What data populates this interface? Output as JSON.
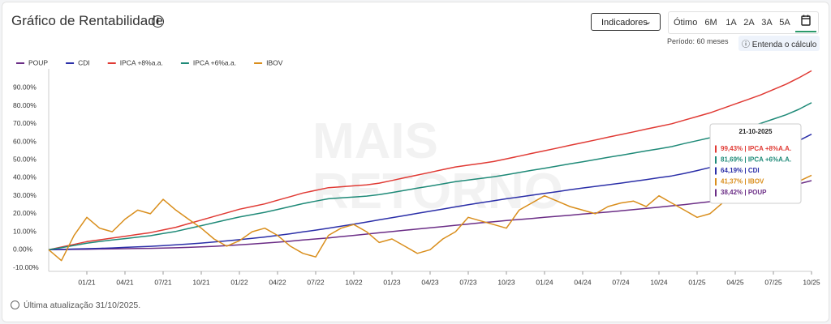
{
  "header": {
    "title": "Gráfico de Rentabilidade",
    "indicators_button": "Indicadores",
    "ranges": [
      "Ótimo",
      "6M",
      "1A",
      "2A",
      "3A",
      "5A"
    ],
    "period": "Período: 60 meses",
    "help_link": "Entenda o cálculo"
  },
  "footer": "Última atualização 31/10/2025.",
  "watermark": [
    "MAIS",
    "RETORNO"
  ],
  "tooltip": {
    "date": "21-10-2025",
    "items": [
      {
        "label": "99,43% | IPCA +8%A.A.",
        "color": "#e03a34"
      },
      {
        "label": "81,69% | IPCA +6%A.A.",
        "color": "#1f8a78"
      },
      {
        "label": "64,19% | CDI",
        "color": "#2b2fa8"
      },
      {
        "label": "41,37% | IBOV",
        "color": "#d98e1c"
      },
      {
        "label": "38,42% | POUP",
        "color": "#6b2d86"
      }
    ]
  },
  "chart_data": {
    "type": "line",
    "categories": [
      null,
      null,
      null,
      "01/21",
      null,
      null,
      "04/21",
      null,
      null,
      "07/21",
      null,
      null,
      "10/21",
      null,
      null,
      "01/22",
      null,
      null,
      "04/22",
      null,
      null,
      "07/22",
      null,
      null,
      "10/22",
      null,
      null,
      "01/23",
      null,
      null,
      "04/23",
      null,
      null,
      "07/23",
      null,
      null,
      "10/23",
      null,
      null,
      "01/24",
      null,
      null,
      "04/24",
      null,
      null,
      "07/24",
      null,
      null,
      "10/24",
      null,
      null,
      "01/25",
      null,
      null,
      "04/25",
      null,
      null,
      "07/25",
      null,
      null,
      "10/25"
    ],
    "ylim": [
      -12,
      96
    ],
    "yticks": [
      {
        "value": -10,
        "label": "-10.00%"
      },
      {
        "value": 0,
        "label": "0.00%"
      },
      {
        "value": 10,
        "label": "10.00%"
      },
      {
        "value": 20,
        "label": "20.00%"
      },
      {
        "value": 30,
        "label": "30.00%"
      },
      {
        "value": 40,
        "label": "40.00%"
      },
      {
        "value": 50,
        "label": "50.00%"
      },
      {
        "value": 60,
        "label": "60.00%"
      },
      {
        "value": 70,
        "label": "70.00%"
      },
      {
        "value": 80,
        "label": "80.00%"
      },
      {
        "value": 90,
        "label": "90.00%"
      }
    ],
    "grid": false,
    "series": [
      {
        "name": "POUP",
        "color": "#6b2d86",
        "values": [
          0,
          0.1,
          0.2,
          0.3,
          0.4,
          0.5,
          0.6,
          0.7,
          0.8,
          0.9,
          1.1,
          1.3,
          1.6,
          1.9,
          2.3,
          2.7,
          3.2,
          3.7,
          4.2,
          4.8,
          5.4,
          6.0,
          6.6,
          7.3,
          8.0,
          8.7,
          9.4,
          10.1,
          10.8,
          11.5,
          12.2,
          12.9,
          13.6,
          14.3,
          15.0,
          15.6,
          16.2,
          16.8,
          17.4,
          18.0,
          18.6,
          19.2,
          19.8,
          20.4,
          21.0,
          21.6,
          22.3,
          23.0,
          23.7,
          24.4,
          25.1,
          25.9,
          26.7,
          27.6,
          28.6,
          30.0,
          31.5,
          33.0,
          34.8,
          36.6,
          38.42
        ]
      },
      {
        "name": "CDI",
        "color": "#2b2fa8",
        "values": [
          0,
          0.2,
          0.4,
          0.6,
          0.8,
          1.0,
          1.3,
          1.6,
          1.9,
          2.3,
          2.7,
          3.2,
          3.7,
          4.3,
          4.9,
          5.6,
          6.3,
          7.1,
          8.0,
          8.9,
          9.9,
          10.9,
          12.0,
          13.1,
          14.2,
          15.4,
          16.6,
          17.8,
          19.0,
          20.2,
          21.4,
          22.6,
          23.8,
          25.0,
          26.1,
          27.2,
          28.3,
          29.3,
          30.3,
          31.3,
          32.3,
          33.3,
          34.3,
          35.2,
          36.1,
          37.0,
          38.0,
          39.0,
          40.0,
          41.0,
          42.4,
          44.0,
          45.7,
          47.5,
          49.4,
          51.4,
          53.5,
          55.7,
          58.0,
          60.6,
          64.19
        ]
      },
      {
        "name": "IPCA +8%a.a.",
        "color": "#e03a34",
        "values": [
          0,
          1.5,
          3.0,
          4.5,
          5.5,
          6.5,
          7.5,
          8.5,
          9.5,
          11.0,
          12.5,
          14.5,
          16.5,
          18.5,
          20.5,
          22.5,
          24.0,
          25.5,
          27.5,
          29.5,
          31.5,
          33.0,
          34.5,
          35.0,
          35.5,
          36.0,
          37.0,
          38.5,
          40.0,
          41.5,
          43.0,
          44.5,
          46.0,
          47.0,
          48.0,
          49.0,
          50.5,
          52.0,
          53.5,
          55.0,
          56.5,
          58.0,
          59.5,
          61.0,
          62.5,
          64.0,
          65.5,
          67.0,
          68.5,
          70.0,
          72.0,
          74.0,
          76.0,
          78.5,
          81.0,
          83.5,
          86.0,
          89.0,
          92.0,
          95.5,
          99.43
        ]
      },
      {
        "name": "IPCA +6%a.a.",
        "color": "#1f8a78",
        "values": [
          0,
          1.2,
          2.4,
          3.6,
          4.6,
          5.4,
          6.2,
          7.0,
          7.8,
          9.0,
          10.2,
          11.8,
          13.4,
          15.0,
          16.6,
          18.2,
          19.5,
          20.8,
          22.4,
          24.0,
          25.6,
          27.0,
          28.3,
          28.8,
          29.3,
          29.8,
          30.6,
          31.8,
          33.0,
          34.2,
          35.4,
          36.6,
          37.8,
          38.7,
          39.6,
          40.5,
          41.7,
          42.9,
          44.1,
          45.3,
          46.5,
          47.7,
          48.9,
          50.1,
          51.3,
          52.5,
          53.7,
          54.9,
          56.1,
          57.3,
          59.0,
          60.6,
          62.2,
          64.2,
          66.2,
          68.2,
          70.2,
          72.6,
          75.0,
          78.0,
          81.69
        ]
      },
      {
        "name": "IBOV",
        "color": "#d98e1c",
        "values": [
          0,
          -6,
          8,
          18,
          12,
          10,
          17,
          22,
          20,
          28,
          22,
          17,
          12,
          6,
          2,
          5,
          10,
          12,
          8,
          2,
          -2,
          -4,
          8,
          12,
          14,
          10,
          4,
          6,
          2,
          -2,
          0,
          6,
          10,
          18,
          16,
          14,
          12,
          22,
          26,
          30,
          27,
          24,
          22,
          20,
          24,
          26,
          27,
          24,
          30,
          26,
          22,
          18,
          20,
          26,
          28,
          30,
          32,
          34,
          36,
          38,
          41.37
        ]
      }
    ]
  }
}
